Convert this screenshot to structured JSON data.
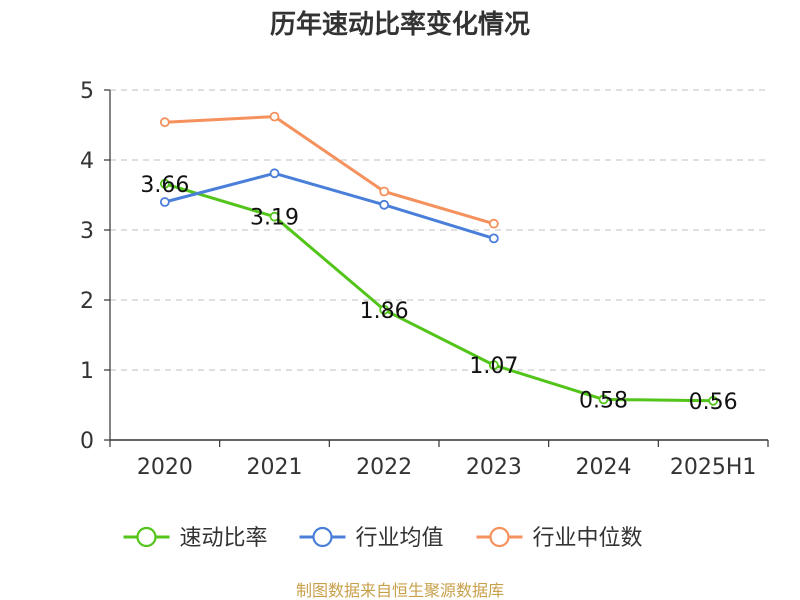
{
  "chart_data": {
    "type": "line",
    "title": "历年速动比率变化情况",
    "categories": [
      "2020",
      "2021",
      "2022",
      "2023",
      "2024",
      "2025H1"
    ],
    "ylim": [
      0,
      5
    ],
    "yticks": [
      0,
      1,
      2,
      3,
      4,
      5
    ],
    "grid": true,
    "legend_position": "bottom",
    "series": [
      {
        "name": "速动比率",
        "color": "#52c41a",
        "values": [
          3.66,
          3.19,
          1.86,
          1.07,
          0.58,
          0.56
        ],
        "labels": [
          "3.66",
          "3.19",
          "1.86",
          "1.07",
          "0.58",
          "0.56"
        ]
      },
      {
        "name": "行业均值",
        "color": "#4a7fd9",
        "values": [
          3.4,
          3.81,
          3.36,
          2.88,
          null,
          null
        ]
      },
      {
        "name": "行业中位数",
        "color": "#f5915c",
        "values": [
          4.54,
          4.62,
          3.55,
          3.09,
          null,
          null
        ]
      }
    ]
  },
  "footer": {
    "source": "制图数据来自恒生聚源数据库"
  }
}
